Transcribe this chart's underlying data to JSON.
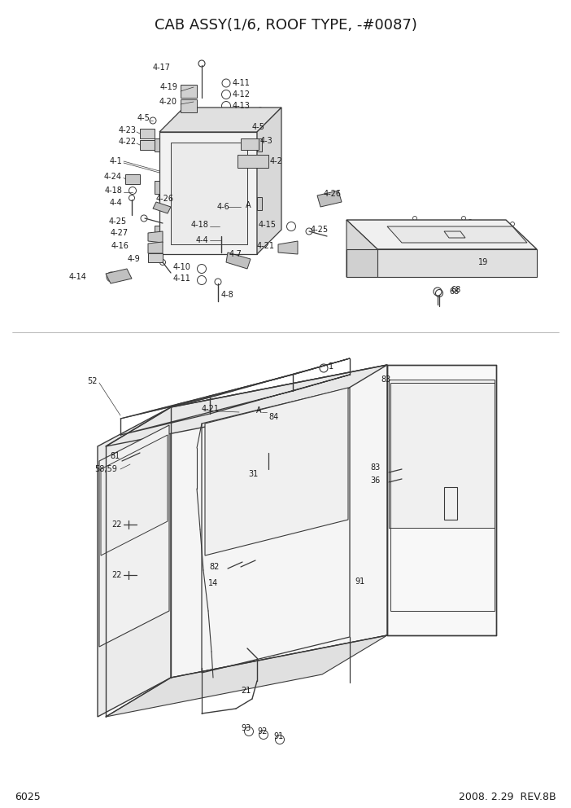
{
  "title": "CAB ASSY(1/6, ROOF TYPE, -#0087)",
  "page_number": "6025",
  "date_rev": "2008. 2.29  REV.8B",
  "bg_color": "#ffffff",
  "lc": "#3a3a3a",
  "figsize": [
    7.02,
    9.92
  ],
  "dpi": 100,
  "title_fs": 13,
  "label_fs": 7.0,
  "footer_fs": 9
}
